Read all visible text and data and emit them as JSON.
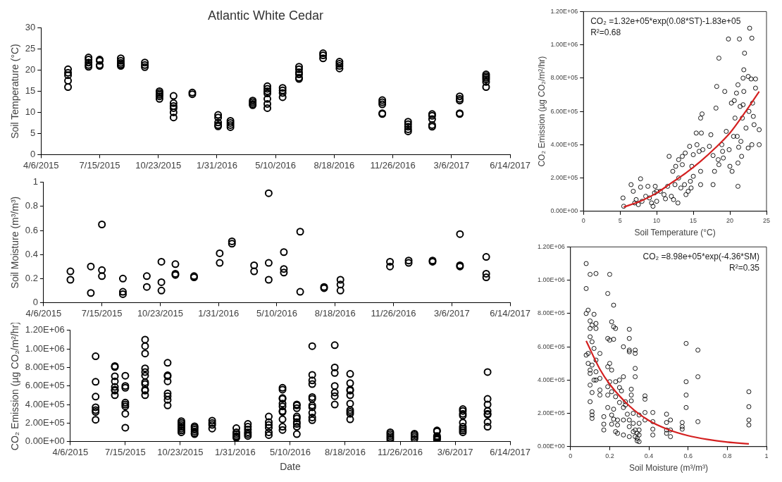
{
  "chart_data": [
    {
      "type": "scatter",
      "title": "Atlantic White Cedar",
      "ylabel": "Soil Temperature (°C)",
      "marker": "circle",
      "xlim": [
        "2015-04-06",
        "2017-06-14"
      ],
      "xticks": [
        {
          "value": "2015-04-06",
          "label": "4/6/2015"
        },
        {
          "value": "2015-07-15",
          "label": "7/15/2015"
        },
        {
          "value": "2015-10-23",
          "label": "10/23/2015"
        },
        {
          "value": "2016-01-31",
          "label": "1/31/2016"
        },
        {
          "value": "2016-05-10",
          "label": "5/10/2016"
        },
        {
          "value": "2016-08-18",
          "label": "8/18/2016"
        },
        {
          "value": "2016-11-26",
          "label": "11/26/2016"
        },
        {
          "value": "2017-03-06",
          "label": "3/6/2017"
        },
        {
          "value": "2017-06-14",
          "label": "6/14/2017"
        }
      ],
      "ylim": [
        0,
        30
      ],
      "yticks": [
        0,
        5,
        10,
        15,
        20,
        25,
        30
      ],
      "series": [
        {
          "color": "#000000",
          "x": [
            "2015-05-22",
            "2015-05-22",
            "2015-05-22",
            "2015-05-22",
            "2015-05-22",
            "2015-06-26",
            "2015-06-26",
            "2015-06-26",
            "2015-06-26",
            "2015-06-26",
            "2015-07-15",
            "2015-07-15",
            "2015-07-15",
            "2015-07-15",
            "2015-08-20",
            "2015-08-20",
            "2015-08-20",
            "2015-08-20",
            "2015-08-20",
            "2015-09-30",
            "2015-09-30",
            "2015-09-30",
            "2015-10-25",
            "2015-10-25",
            "2015-10-25",
            "2015-10-25",
            "2015-10-25",
            "2015-11-18",
            "2015-11-18",
            "2015-11-18",
            "2015-11-18",
            "2015-11-18",
            "2015-11-18",
            "2015-12-20",
            "2015-12-20",
            "2016-02-02",
            "2016-02-02",
            "2016-02-02",
            "2016-02-02",
            "2016-02-02",
            "2016-02-23",
            "2016-02-23",
            "2016-02-23",
            "2016-02-23",
            "2016-04-01",
            "2016-04-01",
            "2016-04-01",
            "2016-04-01",
            "2016-04-26",
            "2016-04-26",
            "2016-04-26",
            "2016-04-26",
            "2016-04-26",
            "2016-04-26",
            "2016-04-26",
            "2016-05-22",
            "2016-05-22",
            "2016-05-22",
            "2016-05-22",
            "2016-06-19",
            "2016-06-19",
            "2016-06-19",
            "2016-06-19",
            "2016-06-19",
            "2016-06-19",
            "2016-07-30",
            "2016-07-30",
            "2016-07-30",
            "2016-08-27",
            "2016-08-27",
            "2016-08-27",
            "2016-08-27",
            "2016-11-08",
            "2016-11-08",
            "2016-11-08",
            "2016-11-08",
            "2016-11-08",
            "2016-12-22",
            "2016-12-22",
            "2016-12-22",
            "2016-12-22",
            "2016-12-22",
            "2017-02-01",
            "2017-02-01",
            "2017-02-01",
            "2017-02-01",
            "2017-02-01",
            "2017-03-20",
            "2017-03-20",
            "2017-03-20",
            "2017-03-20",
            "2017-03-20",
            "2017-05-04",
            "2017-05-04",
            "2017-05-04",
            "2017-05-04",
            "2017-05-04",
            "2017-05-04"
          ],
          "values": [
            20.2,
            19.4,
            18.8,
            17.5,
            16.0,
            23.0,
            22.5,
            21.8,
            21.2,
            20.8,
            22.5,
            22.2,
            21.2,
            21.0,
            22.8,
            22.2,
            21.7,
            21.3,
            21.0,
            21.8,
            21.2,
            20.7,
            15.0,
            14.6,
            14.2,
            13.8,
            13.2,
            13.9,
            12.2,
            11.5,
            11.0,
            10.0,
            8.8,
            14.7,
            14.3,
            9.4,
            8.8,
            7.6,
            7.0,
            6.7,
            8.0,
            7.5,
            7.0,
            6.5,
            12.8,
            12.4,
            12.0,
            11.7,
            16.2,
            15.6,
            15.0,
            14.5,
            13.2,
            12.0,
            11.0,
            15.8,
            15.2,
            14.6,
            13.6,
            20.8,
            20.2,
            19.5,
            19.0,
            18.2,
            17.9,
            24.0,
            23.5,
            22.8,
            22.0,
            21.5,
            21.0,
            20.4,
            12.9,
            12.4,
            11.9,
            9.8,
            9.6,
            7.8,
            7.2,
            6.6,
            6.0,
            5.5,
            9.6,
            9.2,
            8.4,
            7.0,
            6.6,
            13.8,
            13.2,
            12.8,
            9.8,
            9.6,
            19.0,
            18.6,
            18.2,
            17.8,
            17.2,
            16.0
          ]
        }
      ]
    },
    {
      "type": "scatter",
      "ylabel": "Soil Moisture (m³/m³)",
      "marker": "circle",
      "xlim": [
        "2015-04-06",
        "2017-06-14"
      ],
      "xticks": [
        {
          "value": "2015-04-06",
          "label": "4/6/2015"
        },
        {
          "value": "2015-07-15",
          "label": "7/15/2015"
        },
        {
          "value": "2015-10-23",
          "label": "10/23/2015"
        },
        {
          "value": "2016-01-31",
          "label": "1/31/2016"
        },
        {
          "value": "2016-05-10",
          "label": "5/10/2016"
        },
        {
          "value": "2016-08-18",
          "label": "8/18/2016"
        },
        {
          "value": "2016-11-26",
          "label": "11/26/2016"
        },
        {
          "value": "2017-03-06",
          "label": "3/6/2017"
        },
        {
          "value": "2017-06-14",
          "label": "6/14/2017"
        }
      ],
      "ylim": [
        0,
        1
      ],
      "yticks": [
        0,
        0.2,
        0.4,
        0.6,
        0.8,
        1
      ],
      "series": [
        {
          "color": "#000000",
          "x": [
            "2015-05-22",
            "2015-05-22",
            "2015-06-26",
            "2015-06-26",
            "2015-07-15",
            "2015-07-15",
            "2015-07-15",
            "2015-08-20",
            "2015-08-20",
            "2015-08-20",
            "2015-09-30",
            "2015-09-30",
            "2015-10-25",
            "2015-10-25",
            "2015-10-25",
            "2015-11-18",
            "2015-11-18",
            "2015-11-18",
            "2015-12-20",
            "2015-12-20",
            "2016-02-02",
            "2016-02-02",
            "2016-02-23",
            "2016-02-23",
            "2016-04-01",
            "2016-04-01",
            "2016-04-26",
            "2016-04-26",
            "2016-04-26",
            "2016-05-22",
            "2016-05-22",
            "2016-05-22",
            "2016-06-19",
            "2016-06-19",
            "2016-07-30",
            "2016-07-30",
            "2016-08-27",
            "2016-08-27",
            "2016-08-27",
            "2016-11-20",
            "2016-11-20",
            "2016-12-22",
            "2016-12-22",
            "2017-02-01",
            "2017-02-01",
            "2017-03-20",
            "2017-03-20",
            "2017-03-20",
            "2017-05-04",
            "2017-05-04",
            "2017-05-04"
          ],
          "values": [
            0.26,
            0.19,
            0.3,
            0.08,
            0.65,
            0.27,
            0.22,
            0.2,
            0.09,
            0.07,
            0.22,
            0.13,
            0.34,
            0.17,
            0.1,
            0.32,
            0.24,
            0.23,
            0.22,
            0.21,
            0.41,
            0.33,
            0.51,
            0.49,
            0.31,
            0.26,
            0.91,
            0.33,
            0.19,
            0.42,
            0.28,
            0.25,
            0.59,
            0.09,
            0.13,
            0.12,
            0.19,
            0.15,
            0.1,
            0.34,
            0.3,
            0.35,
            0.33,
            0.35,
            0.34,
            0.57,
            0.31,
            0.3,
            0.38,
            0.24,
            0.21
          ]
        }
      ]
    },
    {
      "type": "scatter",
      "xlabel": "Date",
      "ylabel": "CO₂ Emission (µg CO₂/m²/hr)",
      "marker": "circle",
      "xlim": [
        "2015-04-06",
        "2017-06-14"
      ],
      "xticks": [
        {
          "value": "2015-04-06",
          "label": "4/6/2015"
        },
        {
          "value": "2015-07-15",
          "label": "7/15/2015"
        },
        {
          "value": "2015-10-23",
          "label": "10/23/2015"
        },
        {
          "value": "2016-01-31",
          "label": "1/31/2016"
        },
        {
          "value": "2016-05-10",
          "label": "5/10/2016"
        },
        {
          "value": "2016-08-18",
          "label": "8/18/2016"
        },
        {
          "value": "2016-11-26",
          "label": "11/26/2016"
        },
        {
          "value": "2017-03-06",
          "label": "3/6/2017"
        },
        {
          "value": "2017-06-14",
          "label": "6/14/2017"
        }
      ],
      "ylim": [
        0,
        1200000
      ],
      "yticks": [
        {
          "value": 0,
          "label": "0.00E+00"
        },
        {
          "value": 200000,
          "label": "2.00E+05"
        },
        {
          "value": 400000,
          "label": "4.00E+05"
        },
        {
          "value": 600000,
          "label": "6.00E+05"
        },
        {
          "value": 800000,
          "label": "8.00E+05"
        },
        {
          "value": 1000000,
          "label": "1.00E+06"
        },
        {
          "value": 1200000,
          "label": "1.20E+06"
        }
      ],
      "series": [
        {
          "color": "#000000",
          "x": [
            "2015-05-22",
            "2015-05-22",
            "2015-05-22",
            "2015-05-22",
            "2015-05-22",
            "2015-05-22",
            "2015-05-22",
            "2015-06-26",
            "2015-06-26",
            "2015-06-26",
            "2015-06-26",
            "2015-06-26",
            "2015-06-26",
            "2015-06-26",
            "2015-06-26",
            "2015-07-15",
            "2015-07-15",
            "2015-07-15",
            "2015-07-15",
            "2015-07-15",
            "2015-07-15",
            "2015-07-15",
            "2015-07-15",
            "2015-08-20",
            "2015-08-20",
            "2015-08-20",
            "2015-08-20",
            "2015-08-20",
            "2015-08-20",
            "2015-08-20",
            "2015-08-20",
            "2015-08-20",
            "2015-08-20",
            "2015-08-20",
            "2015-09-30",
            "2015-09-30",
            "2015-09-30",
            "2015-09-30",
            "2015-09-30",
            "2015-09-30",
            "2015-09-30",
            "2015-09-30",
            "2015-10-25",
            "2015-10-25",
            "2015-10-25",
            "2015-10-25",
            "2015-10-25",
            "2015-10-25",
            "2015-10-25",
            "2015-11-18",
            "2015-11-18",
            "2015-11-18",
            "2015-11-18",
            "2015-11-18",
            "2015-11-18",
            "2015-12-20",
            "2015-12-20",
            "2015-12-20",
            "2015-12-20",
            "2016-02-02",
            "2016-02-02",
            "2016-02-02",
            "2016-02-02",
            "2016-02-02",
            "2016-02-02",
            "2016-02-23",
            "2016-02-23",
            "2016-02-23",
            "2016-02-23",
            "2016-02-23",
            "2016-02-23",
            "2016-04-01",
            "2016-04-01",
            "2016-04-01",
            "2016-04-01",
            "2016-04-01",
            "2016-04-01",
            "2016-04-26",
            "2016-04-26",
            "2016-04-26",
            "2016-04-26",
            "2016-04-26",
            "2016-04-26",
            "2016-04-26",
            "2016-04-26",
            "2016-04-26",
            "2016-04-26",
            "2016-04-26",
            "2016-05-22",
            "2016-05-22",
            "2016-05-22",
            "2016-05-22",
            "2016-05-22",
            "2016-05-22",
            "2016-05-22",
            "2016-05-22",
            "2016-05-22",
            "2016-06-19",
            "2016-06-19",
            "2016-06-19",
            "2016-06-19",
            "2016-06-19",
            "2016-06-19",
            "2016-06-19",
            "2016-06-19",
            "2016-06-19",
            "2016-06-19",
            "2016-06-19",
            "2016-07-30",
            "2016-07-30",
            "2016-07-30",
            "2016-07-30",
            "2016-07-30",
            "2016-07-30",
            "2016-07-30",
            "2016-08-27",
            "2016-08-27",
            "2016-08-27",
            "2016-08-27",
            "2016-08-27",
            "2016-08-27",
            "2016-08-27",
            "2016-08-27",
            "2016-08-27",
            "2016-08-27",
            "2016-11-08",
            "2016-11-08",
            "2016-11-08",
            "2016-11-08",
            "2016-11-08",
            "2016-12-22",
            "2016-12-22",
            "2016-12-22",
            "2016-12-22",
            "2017-02-01",
            "2017-02-01",
            "2017-02-01",
            "2017-02-01",
            "2017-02-01",
            "2017-02-01",
            "2017-02-01",
            "2017-03-20",
            "2017-03-20",
            "2017-03-20",
            "2017-03-20",
            "2017-03-20",
            "2017-03-20",
            "2017-03-20",
            "2017-03-20",
            "2017-03-20",
            "2017-05-04",
            "2017-05-04",
            "2017-05-04",
            "2017-05-04",
            "2017-05-04",
            "2017-05-04",
            "2017-05-04",
            "2017-05-04"
          ],
          "values": [
            920000,
            645000,
            485000,
            370000,
            340000,
            320000,
            235000,
            815000,
            805000,
            705000,
            650000,
            590000,
            560000,
            550000,
            500000,
            710000,
            600000,
            580000,
            420000,
            400000,
            380000,
            300000,
            150000,
            1100000,
            1030000,
            950000,
            790000,
            750000,
            710000,
            640000,
            620000,
            560000,
            550000,
            500000,
            850000,
            715000,
            705000,
            650000,
            520000,
            490000,
            450000,
            390000,
            220000,
            200000,
            180000,
            160000,
            140000,
            120000,
            100000,
            165000,
            150000,
            130000,
            110000,
            90000,
            80000,
            225000,
            200000,
            180000,
            140000,
            145000,
            100000,
            80000,
            60000,
            50000,
            40000,
            190000,
            160000,
            130000,
            100000,
            80000,
            60000,
            270000,
            210000,
            180000,
            150000,
            100000,
            70000,
            580000,
            560000,
            470000,
            460000,
            410000,
            380000,
            330000,
            320000,
            240000,
            160000,
            125000,
            400000,
            390000,
            360000,
            270000,
            250000,
            210000,
            190000,
            160000,
            80000,
            1030000,
            720000,
            660000,
            620000,
            480000,
            460000,
            390000,
            370000,
            310000,
            260000,
            230000,
            1040000,
            800000,
            740000,
            600000,
            530000,
            490000,
            400000,
            730000,
            630000,
            560000,
            550000,
            500000,
            410000,
            340000,
            320000,
            300000,
            240000,
            100000,
            80000,
            60000,
            40000,
            20000,
            85000,
            70000,
            50000,
            30000,
            120000,
            110000,
            60000,
            50000,
            40000,
            30000,
            20000,
            350000,
            330000,
            300000,
            280000,
            205000,
            160000,
            140000,
            120000,
            100000,
            750000,
            460000,
            400000,
            330000,
            300000,
            290000,
            210000,
            160000
          ]
        }
      ]
    },
    {
      "type": "scatter",
      "xlabel": "Soil Temperature (°C)",
      "ylabel": "CO₂ Emission (µg CO₂/m²/hr)",
      "marker": "circle",
      "xlim": [
        0,
        25
      ],
      "xticks": [
        0,
        5,
        10,
        15,
        20,
        25
      ],
      "ylim": [
        0,
        1200000
      ],
      "yticks": [
        {
          "value": 0,
          "label": "0.00E+00"
        },
        {
          "value": 200000,
          "label": "2.00E+05"
        },
        {
          "value": 400000,
          "label": "4.00E+05"
        },
        {
          "value": 600000,
          "label": "6.00E+05"
        },
        {
          "value": 800000,
          "label": "8.00E+05"
        },
        {
          "value": 1000000,
          "label": "1.00E+06"
        },
        {
          "value": 1200000,
          "label": "1.20E+06"
        }
      ],
      "annotations": [
        "CO₂ =1.32e+05*exp(0.08*ST)-1.83e+05",
        "R²=0.68"
      ],
      "series": [
        {
          "color": "#000000",
          "x": [
            5.4,
            5.5,
            6.5,
            6.8,
            7.0,
            7.2,
            7.5,
            7.8,
            7.8,
            8.0,
            8.5,
            8.8,
            9.0,
            9.3,
            9.5,
            9.7,
            9.8,
            10.0,
            10.0,
            10.5,
            11.0,
            11.2,
            11.5,
            11.7,
            12.0,
            12.2,
            12.3,
            12.5,
            12.6,
            12.9,
            13.0,
            13.0,
            13.3,
            13.5,
            13.5,
            13.8,
            13.9,
            14.0,
            14.3,
            14.5,
            14.6,
            14.7,
            14.8,
            15.0,
            15.0,
            15.4,
            15.5,
            15.8,
            16.0,
            16.0,
            16.0,
            16.1,
            16.2,
            16.3,
            17.2,
            17.4,
            17.7,
            17.7,
            17.9,
            18.1,
            18.2,
            18.4,
            18.5,
            18.5,
            18.9,
            19.0,
            19.1,
            19.3,
            19.5,
            19.8,
            19.9,
            20.0,
            20.2,
            20.3,
            20.5,
            20.6,
            20.7,
            20.9,
            21.0,
            21.1,
            21.1,
            21.1,
            21.2,
            21.3,
            21.4,
            21.5,
            21.6,
            21.7,
            21.8,
            21.8,
            21.9,
            21.9,
            22.0,
            22.2,
            22.5,
            22.5,
            22.6,
            22.7,
            22.9,
            23.0,
            23.0,
            23.1,
            23.2,
            23.3,
            23.5,
            23.5,
            24.0,
            24.0
          ],
          "values": [
            80000,
            30000,
            160000,
            120000,
            50000,
            70000,
            40000,
            195000,
            145000,
            60000,
            90000,
            150000,
            80000,
            50000,
            30000,
            110000,
            150000,
            120000,
            60000,
            120000,
            100000,
            75000,
            150000,
            330000,
            90000,
            240000,
            70000,
            160000,
            270000,
            50000,
            310000,
            200000,
            140000,
            280000,
            330000,
            160000,
            350000,
            100000,
            120000,
            390000,
            180000,
            140000,
            270000,
            340000,
            210000,
            470000,
            400000,
            360000,
            560000,
            240000,
            160000,
            470000,
            585000,
            370000,
            390000,
            460000,
            160000,
            335000,
            240000,
            620000,
            750000,
            310000,
            920000,
            280000,
            400000,
            360000,
            320000,
            720000,
            480000,
            1035000,
            370000,
            270000,
            650000,
            240000,
            450000,
            665000,
            560000,
            710000,
            450000,
            290000,
            150000,
            760000,
            385000,
            1035000,
            630000,
            420000,
            330000,
            560000,
            800000,
            640000,
            850000,
            720000,
            950000,
            500000,
            380000,
            810000,
            600000,
            1100000,
            795000,
            1040000,
            400000,
            650000,
            570000,
            520000,
            795000,
            740000,
            490000,
            400000
          ]
        },
        {
          "type": "line",
          "color": "#d42020",
          "marker": "none",
          "line_style": "solid",
          "x": [
            5.5,
            8,
            10,
            12,
            14,
            16,
            18,
            20,
            22,
            24
          ],
          "values": [
            25000,
            65000,
            110000,
            170000,
            230000,
            300000,
            380000,
            470000,
            590000,
            720000
          ]
        }
      ]
    },
    {
      "type": "scatter",
      "xlabel": "Soil Moisture (m³/m³)",
      "marker": "circle",
      "xlim": [
        0,
        1
      ],
      "xticks": [
        0,
        0.2,
        0.4,
        0.6,
        0.8,
        1
      ],
      "ylim": [
        0,
        1200000
      ],
      "yticks": [
        {
          "value": 0,
          "label": "0.00E+00"
        },
        {
          "value": 200000,
          "label": "2.00E+05"
        },
        {
          "value": 400000,
          "label": "4.00E+05"
        },
        {
          "value": 600000,
          "label": "6.00E+05"
        },
        {
          "value": 800000,
          "label": "8.00E+05"
        },
        {
          "value": 1000000,
          "label": "1.00E+06"
        },
        {
          "value": 1200000,
          "label": "1.20E+06"
        }
      ],
      "annotations": [
        "CO₂ =8.98e+05*exp(-4.36*SM)",
        "R²=0.35"
      ],
      "series": [
        {
          "color": "#000000",
          "x": [
            0.08,
            0.08,
            0.08,
            0.08,
            0.09,
            0.09,
            0.09,
            0.1,
            0.1,
            0.1,
            0.1,
            0.1,
            0.1,
            0.1,
            0.1,
            0.11,
            0.11,
            0.11,
            0.11,
            0.11,
            0.11,
            0.11,
            0.12,
            0.12,
            0.12,
            0.13,
            0.13,
            0.13,
            0.13,
            0.13,
            0.13,
            0.15,
            0.15,
            0.15,
            0.15,
            0.17,
            0.17,
            0.17,
            0.19,
            0.19,
            0.19,
            0.19,
            0.19,
            0.19,
            0.2,
            0.2,
            0.2,
            0.2,
            0.21,
            0.21,
            0.21,
            0.21,
            0.21,
            0.22,
            0.22,
            0.22,
            0.22,
            0.22,
            0.23,
            0.23,
            0.23,
            0.23,
            0.24,
            0.24,
            0.24,
            0.25,
            0.25,
            0.25,
            0.26,
            0.27,
            0.27,
            0.27,
            0.27,
            0.27,
            0.28,
            0.28,
            0.29,
            0.3,
            0.3,
            0.3,
            0.3,
            0.3,
            0.3,
            0.3,
            0.31,
            0.31,
            0.31,
            0.32,
            0.32,
            0.32,
            0.33,
            0.33,
            0.33,
            0.33,
            0.33,
            0.33,
            0.34,
            0.34,
            0.34,
            0.35,
            0.35,
            0.35,
            0.35,
            0.35,
            0.38,
            0.38,
            0.38,
            0.38,
            0.42,
            0.42,
            0.42,
            0.42,
            0.49,
            0.49,
            0.49,
            0.49,
            0.51,
            0.51,
            0.51,
            0.57,
            0.57,
            0.57,
            0.59,
            0.59,
            0.59,
            0.59,
            0.65,
            0.65,
            0.65,
            0.91,
            0.91,
            0.91,
            0.91
          ],
          "values": [
            1100000,
            950000,
            800000,
            550000,
            820000,
            560000,
            500000,
            1035000,
            755000,
            710000,
            660000,
            460000,
            440000,
            370000,
            270000,
            730000,
            630000,
            490000,
            325000,
            210000,
            190000,
            170000,
            795000,
            590000,
            400000,
            1040000,
            740000,
            710000,
            520000,
            450000,
            400000,
            560000,
            410000,
            340000,
            310000,
            180000,
            135000,
            100000,
            920000,
            650000,
            480000,
            360000,
            310000,
            235000,
            1035000,
            640000,
            500000,
            390000,
            750000,
            460000,
            330000,
            190000,
            135000,
            850000,
            720000,
            645000,
            225000,
            165000,
            710000,
            390000,
            300000,
            90000,
            160000,
            130000,
            80000,
            400000,
            355000,
            265000,
            335000,
            600000,
            420000,
            235000,
            160000,
            70000,
            270000,
            250000,
            195000,
            705000,
            650000,
            580000,
            570000,
            160000,
            120000,
            60000,
            345000,
            310000,
            275000,
            200000,
            140000,
            90000,
            580000,
            560000,
            470000,
            420000,
            100000,
            60000,
            80000,
            50000,
            35000,
            190000,
            140000,
            100000,
            70000,
            30000,
            305000,
            285000,
            205000,
            160000,
            205000,
            150000,
            105000,
            70000,
            195000,
            145000,
            100000,
            80000,
            160000,
            100000,
            60000,
            145000,
            120000,
            105000,
            620000,
            390000,
            310000,
            235000,
            580000,
            420000,
            150000,
            330000,
            240000,
            160000,
            130000
          ]
        },
        {
          "type": "line",
          "color": "#d42020",
          "marker": "none",
          "line_style": "solid",
          "x": [
            0.08,
            0.15,
            0.2,
            0.3,
            0.4,
            0.5,
            0.6,
            0.7,
            0.8,
            0.91
          ],
          "values": [
            635000,
            465000,
            375000,
            245000,
            157000,
            102000,
            66000,
            43000,
            27000,
            17000
          ]
        }
      ]
    }
  ]
}
